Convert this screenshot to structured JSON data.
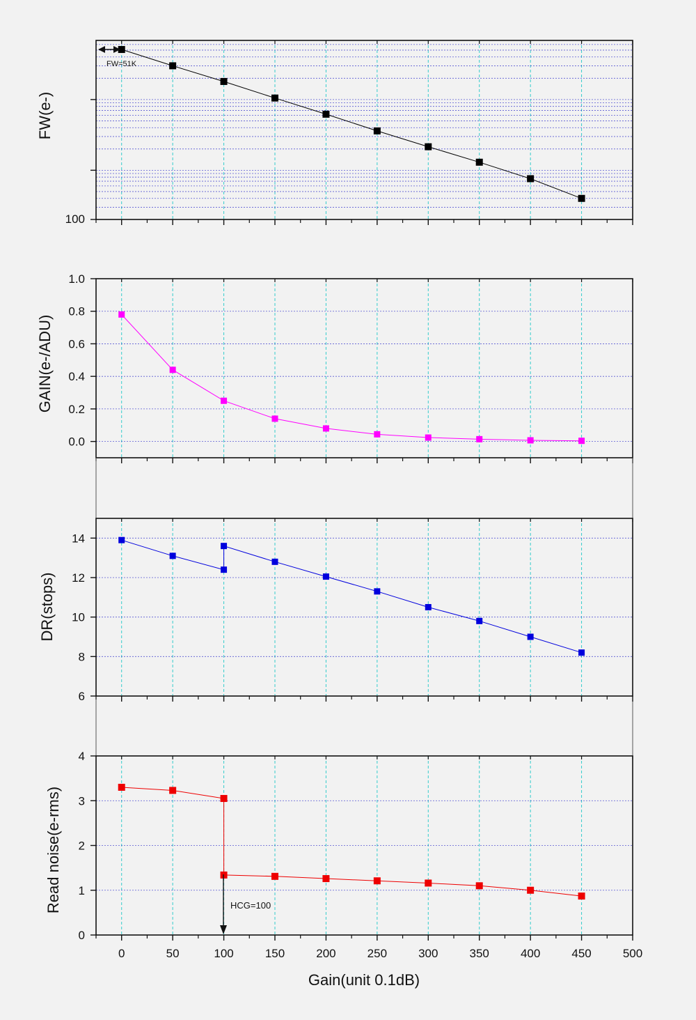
{
  "colors": {
    "background": "#f2f2f2",
    "vgrid": "#33cccc",
    "hgrid": "#3333cc",
    "frame": "#111111",
    "fw_series": "#000000",
    "gain_series": "#ff00ff",
    "dr_series": "#0000dd",
    "rn_series": "#ee0000"
  },
  "chart_data": [
    {
      "type": "line",
      "ylabel": "FW(e-)",
      "yscale": "log",
      "ytick_labels": [
        "100"
      ],
      "grid": true,
      "annotations": [
        {
          "text": "FW=51K",
          "x": 0,
          "y": 51000,
          "marker": "double-arrow"
        }
      ],
      "x": [
        0,
        50,
        100,
        150,
        200,
        250,
        300,
        350,
        400,
        450
      ],
      "series": [
        {
          "values": [
            51000,
            30000,
            18000,
            10500,
            6200,
            3600,
            2150,
            1300,
            760,
            400
          ]
        }
      ]
    },
    {
      "type": "line",
      "ylabel": "GAIN(e-/ADU)",
      "ylim": [
        -0.1,
        1.0
      ],
      "ytick_labels": [
        "0.0",
        "0.2",
        "0.4",
        "0.6",
        "0.8",
        "1.0"
      ],
      "grid": true,
      "x": [
        0,
        50,
        100,
        150,
        200,
        250,
        300,
        350,
        400,
        450
      ],
      "series": [
        {
          "values": [
            0.78,
            0.44,
            0.25,
            0.14,
            0.08,
            0.044,
            0.024,
            0.014,
            0.007,
            0.004
          ]
        }
      ]
    },
    {
      "type": "line",
      "ylabel": "DR(stops)",
      "ylim": [
        6,
        15
      ],
      "ytick_labels": [
        "6",
        "8",
        "10",
        "12",
        "14"
      ],
      "grid": true,
      "x": [
        0,
        50,
        100,
        100,
        150,
        200,
        250,
        300,
        350,
        400,
        450
      ],
      "series": [
        {
          "values": [
            13.9,
            13.1,
            12.4,
            13.6,
            12.8,
            12.05,
            11.3,
            10.5,
            9.8,
            9.0,
            8.2
          ]
        }
      ]
    },
    {
      "type": "line",
      "xlabel": "Gain(unit 0.1dB)",
      "ylabel": "Read noise(e-rms)",
      "xlim": [
        -25,
        500
      ],
      "ylim": [
        0,
        4
      ],
      "xtick_labels": [
        "0",
        "50",
        "100",
        "150",
        "200",
        "250",
        "300",
        "350",
        "400",
        "450",
        "500"
      ],
      "ytick_labels": [
        "0",
        "1",
        "2",
        "3",
        "4"
      ],
      "grid": true,
      "annotations": [
        {
          "text": "HCG=100",
          "x": 100,
          "marker": "down-arrow"
        }
      ],
      "x": [
        0,
        50,
        100,
        100,
        150,
        200,
        250,
        300,
        350,
        400,
        450
      ],
      "series": [
        {
          "values": [
            3.3,
            3.23,
            3.05,
            1.34,
            1.31,
            1.26,
            1.21,
            1.16,
            1.1,
            1.0,
            0.87
          ]
        }
      ]
    }
  ]
}
